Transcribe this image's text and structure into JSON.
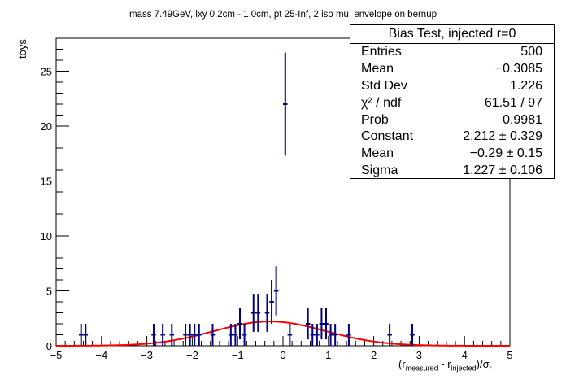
{
  "chart_data": {
    "type": "scatter",
    "title": "mass 7.49GeV, lxy 0.2cm - 1.0cm, pt 25-Inf, 2 iso mu, envelope on bernup",
    "ylabel": "toys",
    "xlabel": "(r_measured - r_injected)/σ_r",
    "xlim": [
      -5,
      5
    ],
    "ylim": [
      0,
      28
    ],
    "x_ticks": [
      "−5",
      "−4",
      "−3",
      "−2",
      "−1",
      "0",
      "1",
      "2",
      "3",
      "4",
      "5"
    ],
    "y_ticks": [
      "0",
      "5",
      "10",
      "15",
      "20",
      "25"
    ],
    "bin_width": 0.1,
    "series": [
      {
        "points": [
          {
            "x": -4.45,
            "y": 1
          },
          {
            "x": -4.35,
            "y": 1
          },
          {
            "x": -2.85,
            "y": 1
          },
          {
            "x": -2.65,
            "y": 1
          },
          {
            "x": -2.45,
            "y": 1
          },
          {
            "x": -2.15,
            "y": 1
          },
          {
            "x": -2.05,
            "y": 1
          },
          {
            "x": -1.95,
            "y": 1
          },
          {
            "x": -1.85,
            "y": 1
          },
          {
            "x": -1.55,
            "y": 1
          },
          {
            "x": -1.15,
            "y": 1
          },
          {
            "x": -1.05,
            "y": 1
          },
          {
            "x": -0.95,
            "y": 2
          },
          {
            "x": -0.85,
            "y": 1
          },
          {
            "x": -0.65,
            "y": 3
          },
          {
            "x": -0.55,
            "y": 3
          },
          {
            "x": -0.35,
            "y": 3
          },
          {
            "x": -0.25,
            "y": 4
          },
          {
            "x": -0.15,
            "y": 5
          },
          {
            "x": 0.05,
            "y": 22
          },
          {
            "x": 0.15,
            "y": 1
          },
          {
            "x": 0.55,
            "y": 2
          },
          {
            "x": 0.65,
            "y": 1
          },
          {
            "x": 0.75,
            "y": 1
          },
          {
            "x": 0.85,
            "y": 2
          },
          {
            "x": 0.95,
            "y": 2
          },
          {
            "x": 1.05,
            "y": 1
          },
          {
            "x": 1.15,
            "y": 1
          },
          {
            "x": 1.45,
            "y": 1
          },
          {
            "x": 2.35,
            "y": 1
          },
          {
            "x": 2.85,
            "y": 1
          }
        ]
      }
    ],
    "fit": {
      "type": "gaussian",
      "constant": 2.212,
      "mean": -0.29,
      "sigma": 1.227,
      "color": "#ff0000"
    },
    "marker_color": "#000080",
    "stats_box": {
      "title": "Bias Test, injected r=0",
      "rows": [
        {
          "label": "Entries",
          "value": "500"
        },
        {
          "label": "Mean",
          "value": "−0.3085"
        },
        {
          "label": "Std Dev",
          "value": "1.226"
        },
        {
          "label": "χ² / ndf",
          "value": "61.51 / 97"
        },
        {
          "label": "Prob",
          "value": "0.9981"
        },
        {
          "label": "Constant",
          "value": "2.212 ± 0.329"
        },
        {
          "label": "Mean",
          "value": "−0.29 ± 0.15"
        },
        {
          "label": "Sigma",
          "value": "1.227 ± 0.106"
        }
      ]
    }
  }
}
